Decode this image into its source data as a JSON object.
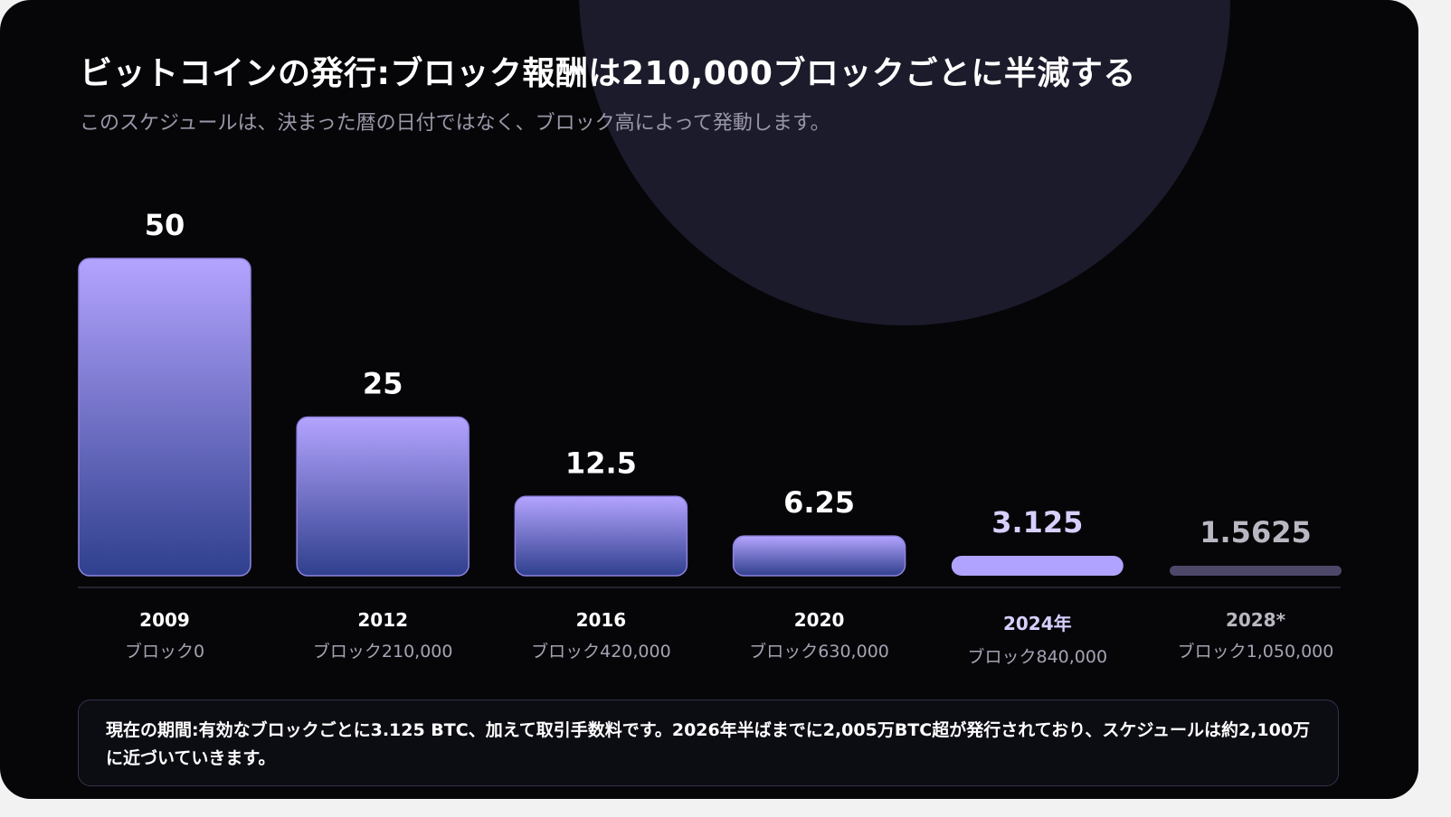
{
  "title": "ビットコインの発行:ブロック報酬は210,000ブロックごとに半減する",
  "subtitle": "このスケジュールは、決まった暦の日付ではなく、ブロック高によって発動します。",
  "chart_data": {
    "type": "bar",
    "categories": [
      "2009",
      "2012",
      "2016",
      "2020",
      "2024年",
      "2028*"
    ],
    "block_labels": [
      "ブロック0",
      "ブロック210,000",
      "ブロック420,000",
      "ブロック630,000",
      "ブロック840,000",
      "ブロック1,050,000"
    ],
    "value_labels": [
      "50",
      "25",
      "12.5",
      "6.25",
      "3.125",
      "1.5625"
    ],
    "values": [
      50,
      25,
      12.5,
      6.25,
      3.125,
      1.5625
    ],
    "ylim": [
      0,
      50
    ],
    "highlight_index": 4,
    "projected_index": 5,
    "colors": {
      "bar_top": "#b4a4ff",
      "bar_bottom": "#2f3f8e",
      "bar_border": "#8f84e0",
      "highlight": "#b0a3ff",
      "projected": "#4d4768",
      "value_text": "#ffffff",
      "highlight_text": "#d7d0ff",
      "projected_text": "#b9b8c2",
      "year_text": "#ffffff",
      "block_text": "#a5a3b2"
    }
  },
  "note": "現在の期間:有効なブロックごとに3.125 BTC、加えて取引手数料です。2026年半ばまでに2,005万BTC超が発行されており、スケジュールは約2,100万に近づいていきます。"
}
